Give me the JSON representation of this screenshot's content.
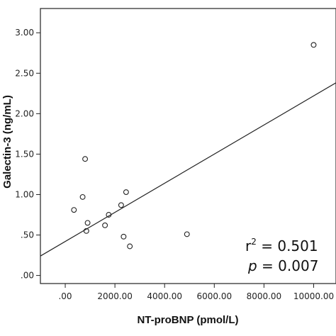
{
  "chart_data": {
    "type": "scatter",
    "title": "",
    "xlabel": "NT-proBNP (pmol/L)",
    "ylabel": "Galectin-3 (ng/mL)",
    "xlim": [
      -1000,
      10900
    ],
    "ylim": [
      -0.1,
      3.3
    ],
    "xticks": [
      0,
      2000,
      4000,
      6000,
      8000,
      10000
    ],
    "xtick_labels": [
      ".00",
      "2000.00",
      "4000.00",
      "6000.00",
      "8000.00",
      "10000.00"
    ],
    "yticks": [
      0,
      0.5,
      1.0,
      1.5,
      2.0,
      2.5,
      3.0
    ],
    "ytick_labels": [
      ".00",
      ".50",
      "1.00",
      "1.50",
      "2.00",
      "2.50",
      "3.00"
    ],
    "grid": false,
    "points": [
      {
        "x": 10000,
        "y": 2.85
      },
      {
        "x": 800,
        "y": 1.44
      },
      {
        "x": 700,
        "y": 0.97
      },
      {
        "x": 2450,
        "y": 1.03
      },
      {
        "x": 350,
        "y": 0.81
      },
      {
        "x": 2250,
        "y": 0.87
      },
      {
        "x": 1750,
        "y": 0.75
      },
      {
        "x": 900,
        "y": 0.65
      },
      {
        "x": 1600,
        "y": 0.62
      },
      {
        "x": 850,
        "y": 0.55
      },
      {
        "x": 4900,
        "y": 0.51
      },
      {
        "x": 2350,
        "y": 0.48
      },
      {
        "x": 2600,
        "y": 0.36
      }
    ],
    "fit_line": {
      "intercept": 0.42,
      "slope": 0.00018
    },
    "annotations": {
      "r_label": "r",
      "r_exponent": "2",
      "r_value": " = 0.501",
      "p_label": "p",
      "p_value": " = 0.007"
    }
  }
}
